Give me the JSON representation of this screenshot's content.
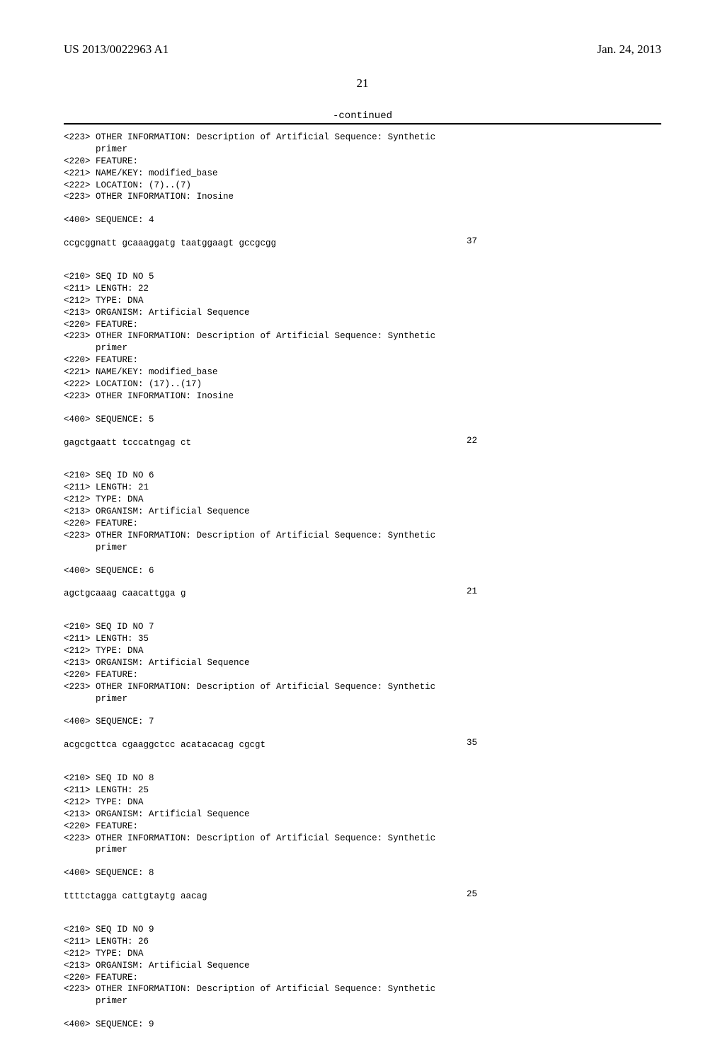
{
  "header": {
    "left": "US 2013/0022963 A1",
    "right": "Jan. 24, 2013"
  },
  "page_number": "21",
  "continued": "-continued",
  "blocks": [
    {
      "headers": [
        "<223> OTHER INFORMATION: Description of Artificial Sequence: Synthetic",
        "      primer",
        "<220> FEATURE:",
        "<221> NAME/KEY: modified_base",
        "<222> LOCATION: (7)..(7)",
        "<223> OTHER INFORMATION: Inosine"
      ],
      "seq_header": "<400> SEQUENCE: 4",
      "sequence": "ccgcggnatt gcaaaggatg taatggaagt gccgcgg",
      "length": "37"
    },
    {
      "headers": [
        "<210> SEQ ID NO 5",
        "<211> LENGTH: 22",
        "<212> TYPE: DNA",
        "<213> ORGANISM: Artificial Sequence",
        "<220> FEATURE:",
        "<223> OTHER INFORMATION: Description of Artificial Sequence: Synthetic",
        "      primer",
        "<220> FEATURE:",
        "<221> NAME/KEY: modified_base",
        "<222> LOCATION: (17)..(17)",
        "<223> OTHER INFORMATION: Inosine"
      ],
      "seq_header": "<400> SEQUENCE: 5",
      "sequence": "gagctgaatt tcccatngag ct",
      "length": "22"
    },
    {
      "headers": [
        "<210> SEQ ID NO 6",
        "<211> LENGTH: 21",
        "<212> TYPE: DNA",
        "<213> ORGANISM: Artificial Sequence",
        "<220> FEATURE:",
        "<223> OTHER INFORMATION: Description of Artificial Sequence: Synthetic",
        "      primer"
      ],
      "seq_header": "<400> SEQUENCE: 6",
      "sequence": "agctgcaaag caacattgga g",
      "length": "21"
    },
    {
      "headers": [
        "<210> SEQ ID NO 7",
        "<211> LENGTH: 35",
        "<212> TYPE: DNA",
        "<213> ORGANISM: Artificial Sequence",
        "<220> FEATURE:",
        "<223> OTHER INFORMATION: Description of Artificial Sequence: Synthetic",
        "      primer"
      ],
      "seq_header": "<400> SEQUENCE: 7",
      "sequence": "acgcgcttca cgaaggctcc acatacacag cgcgt",
      "length": "35"
    },
    {
      "headers": [
        "<210> SEQ ID NO 8",
        "<211> LENGTH: 25",
        "<212> TYPE: DNA",
        "<213> ORGANISM: Artificial Sequence",
        "<220> FEATURE:",
        "<223> OTHER INFORMATION: Description of Artificial Sequence: Synthetic",
        "      primer"
      ],
      "seq_header": "<400> SEQUENCE: 8",
      "sequence": "ttttctagga cattgtaytg aacag",
      "length": "25"
    },
    {
      "headers": [
        "<210> SEQ ID NO 9",
        "<211> LENGTH: 26",
        "<212> TYPE: DNA",
        "<213> ORGANISM: Artificial Sequence",
        "<220> FEATURE:",
        "<223> OTHER INFORMATION: Description of Artificial Sequence: Synthetic",
        "      primer"
      ],
      "seq_header": "<400> SEQUENCE: 9",
      "sequence": "",
      "length": ""
    }
  ]
}
